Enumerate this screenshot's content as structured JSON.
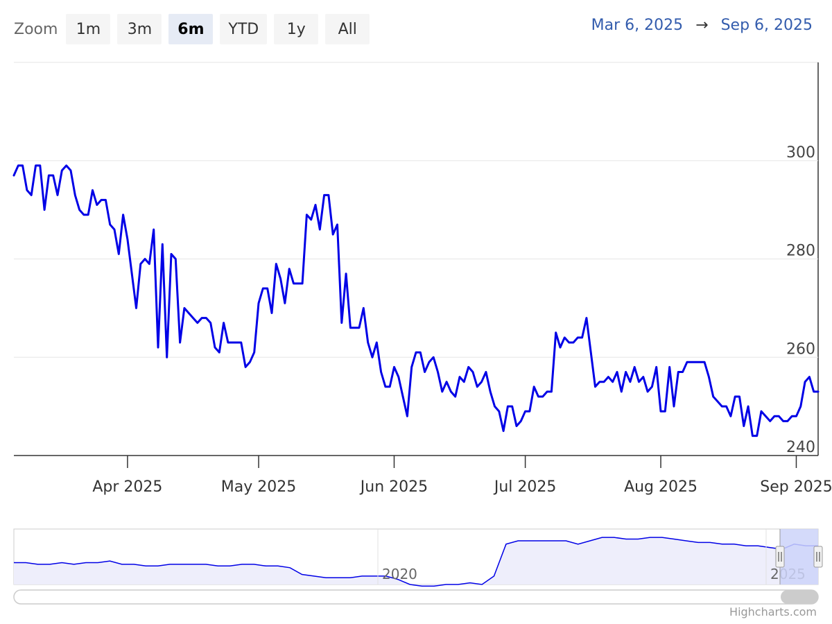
{
  "toolbar": {
    "zoom_label": "Zoom",
    "buttons": [
      "1m",
      "3m",
      "6m",
      "YTD",
      "1y",
      "All"
    ],
    "active_index": 2
  },
  "range": {
    "from": "Mar 6, 2025",
    "arrow": "→",
    "to": "Sep 6, 2025"
  },
  "credits": "Highcharts.com",
  "colors": {
    "series": "#0000e6",
    "navigator_fill": "#eeeefb",
    "navigator_selection": "#ccd3f9"
  },
  "chart_data": {
    "type": "line",
    "title": "",
    "xlabel": "",
    "ylabel": "",
    "ylim": [
      240,
      320
    ],
    "y_ticks": [
      240,
      260,
      280,
      300
    ],
    "x_range": [
      "2025-03-06",
      "2025-09-06"
    ],
    "x_ticks": [
      {
        "date": "2025-04-01",
        "label": "Apr 2025"
      },
      {
        "date": "2025-05-01",
        "label": "May 2025"
      },
      {
        "date": "2025-06-01",
        "label": "Jun 2025"
      },
      {
        "date": "2025-07-01",
        "label": "Jul 2025"
      },
      {
        "date": "2025-08-01",
        "label": "Aug 2025"
      },
      {
        "date": "2025-09-01",
        "label": "Sep 2025"
      }
    ],
    "series": [
      {
        "x": [
          "2025-03-06",
          "2025-03-07",
          "2025-03-08",
          "2025-03-09",
          "2025-03-10",
          "2025-03-11",
          "2025-03-12",
          "2025-03-13",
          "2025-03-14",
          "2025-03-15",
          "2025-03-16",
          "2025-03-17",
          "2025-03-18",
          "2025-03-19",
          "2025-03-20",
          "2025-03-21",
          "2025-03-22",
          "2025-03-23",
          "2025-03-24",
          "2025-03-25",
          "2025-03-26",
          "2025-03-27",
          "2025-03-28",
          "2025-03-29",
          "2025-03-30",
          "2025-03-31",
          "2025-04-01",
          "2025-04-02",
          "2025-04-03",
          "2025-04-04",
          "2025-04-05",
          "2025-04-06",
          "2025-04-07",
          "2025-04-08",
          "2025-04-09",
          "2025-04-10",
          "2025-04-11",
          "2025-04-12",
          "2025-04-13",
          "2025-04-14",
          "2025-04-15",
          "2025-04-16",
          "2025-04-17",
          "2025-04-18",
          "2025-04-19",
          "2025-04-20",
          "2025-04-21",
          "2025-04-22",
          "2025-04-23",
          "2025-04-24",
          "2025-04-25",
          "2025-04-26",
          "2025-04-27",
          "2025-04-28",
          "2025-04-29",
          "2025-04-30",
          "2025-05-01",
          "2025-05-02",
          "2025-05-03",
          "2025-05-04",
          "2025-05-05",
          "2025-05-06",
          "2025-05-07",
          "2025-05-08",
          "2025-05-09",
          "2025-05-10",
          "2025-05-11",
          "2025-05-12",
          "2025-05-13",
          "2025-05-14",
          "2025-05-15",
          "2025-05-16",
          "2025-05-17",
          "2025-05-18",
          "2025-05-19",
          "2025-05-20",
          "2025-05-21",
          "2025-05-22",
          "2025-05-23",
          "2025-05-24",
          "2025-05-25",
          "2025-05-26",
          "2025-05-27",
          "2025-05-28",
          "2025-05-29",
          "2025-05-30",
          "2025-05-31",
          "2025-06-01",
          "2025-06-02",
          "2025-06-03",
          "2025-06-04",
          "2025-06-05",
          "2025-06-06",
          "2025-06-07",
          "2025-06-08",
          "2025-06-09",
          "2025-06-10",
          "2025-06-11",
          "2025-06-12",
          "2025-06-13",
          "2025-06-14",
          "2025-06-15",
          "2025-06-16",
          "2025-06-17",
          "2025-06-18",
          "2025-06-19",
          "2025-06-20",
          "2025-06-21",
          "2025-06-22",
          "2025-06-23",
          "2025-06-24",
          "2025-06-25",
          "2025-06-26",
          "2025-06-27",
          "2025-06-28",
          "2025-06-29",
          "2025-06-30",
          "2025-07-01",
          "2025-07-02",
          "2025-07-03",
          "2025-07-04",
          "2025-07-05",
          "2025-07-06",
          "2025-07-07",
          "2025-07-08",
          "2025-07-09",
          "2025-07-10",
          "2025-07-11",
          "2025-07-12",
          "2025-07-13",
          "2025-07-14",
          "2025-07-15",
          "2025-07-16",
          "2025-07-17",
          "2025-07-18",
          "2025-07-19",
          "2025-07-20",
          "2025-07-21",
          "2025-07-22",
          "2025-07-23",
          "2025-07-24",
          "2025-07-25",
          "2025-07-26",
          "2025-07-27",
          "2025-07-28",
          "2025-07-29",
          "2025-07-30",
          "2025-07-31",
          "2025-08-01",
          "2025-08-02",
          "2025-08-03",
          "2025-08-04",
          "2025-08-05",
          "2025-08-06",
          "2025-08-07",
          "2025-08-08",
          "2025-08-09",
          "2025-08-10",
          "2025-08-11",
          "2025-08-12",
          "2025-08-13",
          "2025-08-14",
          "2025-08-15",
          "2025-08-16",
          "2025-08-17",
          "2025-08-18",
          "2025-08-19",
          "2025-08-20",
          "2025-08-21",
          "2025-08-22",
          "2025-08-23",
          "2025-08-24",
          "2025-08-25",
          "2025-08-26",
          "2025-08-27",
          "2025-08-28",
          "2025-08-29",
          "2025-08-30",
          "2025-08-31",
          "2025-09-01",
          "2025-09-02",
          "2025-09-03",
          "2025-09-04",
          "2025-09-05",
          "2025-09-06"
        ],
        "y": [
          297,
          299,
          299,
          294,
          293,
          299,
          299,
          290,
          297,
          297,
          293,
          298,
          299,
          298,
          293,
          290,
          289,
          289,
          294,
          291,
          292,
          292,
          287,
          286,
          281,
          289,
          284,
          277,
          270,
          279,
          280,
          279,
          286,
          262,
          283,
          260,
          281,
          280,
          263,
          270,
          269,
          268,
          267,
          268,
          268,
          267,
          262,
          261,
          267,
          263,
          263,
          263,
          263,
          258,
          259,
          261,
          271,
          274,
          274,
          269,
          279,
          276,
          271,
          278,
          275,
          275,
          275,
          289,
          288,
          291,
          286,
          293,
          293,
          285,
          287,
          267,
          277,
          266,
          266,
          266,
          270,
          263,
          260,
          263,
          257,
          254,
          254,
          258,
          256,
          252,
          248,
          258,
          261,
          261,
          257,
          259,
          260,
          257,
          253,
          255,
          253,
          252,
          256,
          255,
          258,
          257,
          254,
          255,
          257,
          253,
          250,
          249,
          245,
          250,
          250,
          246,
          247,
          249,
          249,
          254,
          252,
          252,
          253,
          253,
          265,
          262,
          264,
          263,
          263,
          264,
          264,
          268,
          261,
          254,
          255,
          255,
          256,
          255,
          257,
          253,
          257,
          255,
          258,
          255,
          256,
          253,
          254,
          258,
          249,
          249,
          258,
          250,
          257,
          257,
          259,
          259,
          259,
          259,
          259,
          256,
          252,
          251,
          250,
          250,
          248,
          252,
          252,
          246,
          250,
          244,
          244,
          249,
          248,
          247,
          248,
          248,
          247,
          247,
          248,
          248,
          250,
          255,
          256,
          253,
          253
        ]
      }
    ],
    "navigator": {
      "x_ticks": [
        "2020",
        "2025"
      ],
      "values": [
        305,
        305,
        304,
        304,
        305,
        304,
        305,
        305,
        306,
        304,
        304,
        303,
        303,
        304,
        304,
        304,
        304,
        303,
        303,
        304,
        304,
        303,
        303,
        302,
        298,
        297,
        296,
        296,
        296,
        297,
        297,
        297,
        295,
        292,
        291,
        291,
        292,
        292,
        293,
        292,
        297,
        316,
        318,
        318,
        318,
        318,
        318,
        316,
        318,
        320,
        320,
        319,
        319,
        320,
        320,
        319,
        318,
        317,
        317,
        316,
        316,
        315,
        315,
        314,
        313,
        316,
        315,
        315
      ]
    }
  }
}
